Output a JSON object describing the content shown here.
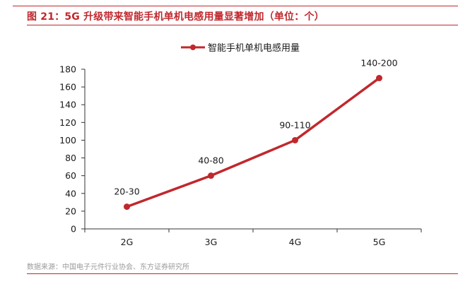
{
  "title": "图 21：5G 升级带来智能手机单机电感用量显著增加（单位：个）",
  "source": "数据来源：中国电子元件行业协会、东方证券研究所",
  "colors": {
    "accent": "#c0282d",
    "series": "#c0282d",
    "axis": "#333333",
    "text": "#1a1a1a",
    "source": "#9a9a9a"
  },
  "chart_data": {
    "type": "line",
    "categories": [
      "2G",
      "3G",
      "4G",
      "5G"
    ],
    "series": [
      {
        "name": "智能手机单机电感用量",
        "values": [
          25,
          60,
          100,
          170
        ],
        "data_labels": [
          "20-30",
          "40-80",
          "90-110",
          "140-200"
        ]
      }
    ],
    "yticks": [
      "0",
      "20",
      "40",
      "60",
      "80",
      "100",
      "120",
      "140",
      "160",
      "180"
    ],
    "ylim": [
      0,
      180
    ],
    "grid": false,
    "legend_position": "top-center",
    "markers": true
  }
}
